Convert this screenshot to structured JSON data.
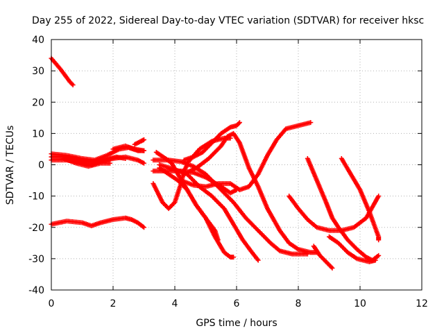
{
  "chart_data": {
    "type": "scatter",
    "title": "Day 255 of 2022, Sidereal Day-to-day VTEC variation (SDTVAR) for receiver hksc",
    "xlabel": "GPS time / hours",
    "ylabel": "SDTVAR / TECUs",
    "xlim": [
      0,
      12
    ],
    "ylim": [
      -40,
      40
    ],
    "x_ticks": [
      "0",
      "2",
      "4",
      "6",
      "8",
      "10",
      "12"
    ],
    "y_ticks": [
      "-40",
      "-30",
      "-20",
      "-10",
      "0",
      "10",
      "20",
      "30",
      "40"
    ],
    "grid": true,
    "marker": "plus",
    "color": "#ff0000",
    "series": [
      {
        "points": [
          [
            0.0,
            34
          ],
          [
            0.3,
            30.5
          ],
          [
            0.6,
            26.5
          ],
          [
            0.7,
            25.5
          ]
        ]
      },
      {
        "points": [
          [
            0.0,
            2.5
          ],
          [
            0.4,
            2.5
          ],
          [
            0.8,
            2.0
          ],
          [
            1.2,
            1.0
          ],
          [
            1.6,
            1.0
          ],
          [
            2.0,
            2.0
          ],
          [
            2.4,
            2.5
          ],
          [
            2.8,
            1.5
          ],
          [
            3.0,
            0.5
          ]
        ]
      },
      {
        "points": [
          [
            0.0,
            3.5
          ],
          [
            0.5,
            3.0
          ],
          [
            1.0,
            2.0
          ],
          [
            1.4,
            1.5
          ],
          [
            1.8,
            3.0
          ],
          [
            2.2,
            5.0
          ],
          [
            2.5,
            5.5
          ],
          [
            2.8,
            4.5
          ],
          [
            3.0,
            4.5
          ]
        ]
      },
      {
        "points": [
          [
            0.0,
            1.5
          ],
          [
            0.5,
            1.5
          ],
          [
            1.0,
            0.5
          ],
          [
            1.3,
            0.0
          ],
          [
            1.7,
            1.5
          ],
          [
            2.1,
            2.5
          ],
          [
            2.4,
            2.0
          ]
        ]
      },
      {
        "points": [
          [
            0.4,
            2.0
          ],
          [
            0.8,
            0.5
          ],
          [
            1.2,
            -0.5
          ],
          [
            1.6,
            0.5
          ],
          [
            1.9,
            0.5
          ]
        ]
      },
      {
        "points": [
          [
            2.0,
            5.0
          ],
          [
            2.4,
            6.0
          ],
          [
            2.7,
            5.0
          ],
          [
            3.0,
            4.5
          ]
        ]
      },
      {
        "points": [
          [
            2.7,
            6.5
          ],
          [
            2.9,
            7.5
          ],
          [
            3.0,
            8.0
          ]
        ]
      },
      {
        "points": [
          [
            0.0,
            -19
          ],
          [
            0.5,
            -18
          ],
          [
            1.0,
            -18.5
          ],
          [
            1.3,
            -19.5
          ],
          [
            1.6,
            -18.5
          ],
          [
            2.0,
            -17.5
          ],
          [
            2.4,
            -17
          ],
          [
            2.6,
            -17.5
          ],
          [
            2.8,
            -18.5
          ],
          [
            3.0,
            -20
          ]
        ]
      },
      {
        "points": [
          [
            3.3,
            -6
          ],
          [
            3.6,
            -12
          ],
          [
            3.8,
            -14
          ],
          [
            4.0,
            -12
          ],
          [
            4.2,
            -6
          ],
          [
            4.3,
            -2
          ],
          [
            4.4,
            0
          ]
        ]
      },
      {
        "points": [
          [
            3.3,
            -2
          ],
          [
            3.8,
            -2
          ],
          [
            4.2,
            -2
          ],
          [
            4.6,
            -2.5
          ],
          [
            5.0,
            -4
          ],
          [
            5.5,
            -7
          ],
          [
            5.8,
            -9
          ],
          [
            6.0,
            -8
          ]
        ]
      },
      {
        "points": [
          [
            3.3,
            1.5
          ],
          [
            3.8,
            1.5
          ],
          [
            4.2,
            1
          ],
          [
            4.6,
            -0.5
          ],
          [
            5.0,
            -3
          ],
          [
            5.5,
            -8
          ],
          [
            5.9,
            -12
          ],
          [
            6.3,
            -17
          ],
          [
            6.7,
            -21
          ],
          [
            7.1,
            -25
          ],
          [
            7.4,
            -27.5
          ],
          [
            7.8,
            -28.5
          ],
          [
            8.3,
            -28.5
          ]
        ]
      },
      {
        "points": [
          [
            3.4,
            4
          ],
          [
            3.7,
            2
          ],
          [
            3.9,
            0.5
          ],
          [
            4.1,
            -3
          ],
          [
            4.4,
            -8
          ],
          [
            4.7,
            -13
          ],
          [
            5.0,
            -17
          ],
          [
            5.3,
            -23
          ],
          [
            5.6,
            -28
          ],
          [
            5.8,
            -29.5
          ],
          [
            5.9,
            -29.5
          ]
        ]
      },
      {
        "points": [
          [
            3.5,
            -1
          ],
          [
            3.8,
            -3
          ],
          [
            4.1,
            -5
          ],
          [
            4.4,
            -8
          ],
          [
            4.7,
            -13
          ],
          [
            5.0,
            -17
          ],
          [
            5.3,
            -21
          ],
          [
            5.4,
            -24
          ]
        ]
      },
      {
        "points": [
          [
            3.5,
            0
          ],
          [
            4.0,
            -1.5
          ],
          [
            4.4,
            -3
          ],
          [
            4.8,
            -7
          ],
          [
            5.2,
            -10
          ],
          [
            5.6,
            -14
          ],
          [
            5.9,
            -19
          ],
          [
            6.2,
            -24
          ],
          [
            6.5,
            -28
          ],
          [
            6.7,
            -30.5
          ]
        ]
      },
      {
        "points": [
          [
            4.3,
            1.5
          ],
          [
            4.6,
            2.5
          ],
          [
            4.9,
            4
          ],
          [
            5.2,
            7
          ],
          [
            5.5,
            10
          ],
          [
            5.8,
            12
          ],
          [
            6.0,
            12.5
          ],
          [
            6.1,
            13.5
          ]
        ]
      },
      {
        "points": [
          [
            4.4,
            0.5
          ],
          [
            4.8,
            5
          ],
          [
            5.2,
            7.5
          ],
          [
            5.6,
            8.5
          ],
          [
            5.8,
            8.5
          ]
        ]
      },
      {
        "points": [
          [
            4.3,
            -3
          ],
          [
            4.7,
            -1
          ],
          [
            5.1,
            2
          ],
          [
            5.5,
            6
          ],
          [
            5.7,
            9
          ],
          [
            5.9,
            10
          ],
          [
            6.1,
            7
          ],
          [
            6.4,
            -1
          ],
          [
            6.7,
            -7
          ],
          [
            7.0,
            -14
          ],
          [
            7.4,
            -21
          ],
          [
            7.7,
            -25
          ],
          [
            8.0,
            -27
          ],
          [
            8.4,
            -28
          ],
          [
            8.6,
            -28
          ]
        ]
      },
      {
        "points": [
          [
            4.2,
            -5
          ],
          [
            4.6,
            -6.5
          ],
          [
            5.0,
            -7
          ],
          [
            5.4,
            -6
          ],
          [
            5.8,
            -6
          ],
          [
            6.1,
            -8
          ],
          [
            6.4,
            -7
          ],
          [
            6.7,
            -3
          ],
          [
            7.0,
            3
          ],
          [
            7.3,
            8
          ],
          [
            7.6,
            11.5
          ],
          [
            8.0,
            12.5
          ],
          [
            8.4,
            13.5
          ]
        ]
      },
      {
        "points": [
          [
            7.7,
            -10
          ],
          [
            8.0,
            -14
          ],
          [
            8.3,
            -17.5
          ],
          [
            8.6,
            -20
          ],
          [
            9.0,
            -21
          ],
          [
            9.4,
            -21
          ],
          [
            9.8,
            -20
          ],
          [
            10.2,
            -17
          ],
          [
            10.6,
            -10
          ]
        ]
      },
      {
        "points": [
          [
            8.3,
            2
          ],
          [
            8.6,
            -5
          ],
          [
            8.9,
            -12
          ],
          [
            9.1,
            -17
          ],
          [
            9.3,
            -20
          ],
          [
            9.6,
            -24
          ],
          [
            9.9,
            -27
          ],
          [
            10.2,
            -29.5
          ],
          [
            10.4,
            -30.5
          ],
          [
            10.6,
            -29
          ]
        ]
      },
      {
        "points": [
          [
            8.5,
            -26
          ],
          [
            8.7,
            -29
          ],
          [
            8.9,
            -31
          ],
          [
            9.1,
            -33
          ]
        ]
      },
      {
        "points": [
          [
            9.4,
            2
          ],
          [
            9.7,
            -3
          ],
          [
            10.0,
            -8
          ],
          [
            10.3,
            -15
          ],
          [
            10.6,
            -23
          ],
          [
            10.6,
            -24
          ]
        ]
      },
      {
        "points": [
          [
            9.0,
            -23
          ],
          [
            9.3,
            -25
          ],
          [
            9.6,
            -28
          ],
          [
            9.9,
            -30
          ],
          [
            10.3,
            -31
          ],
          [
            10.5,
            -30.5
          ]
        ]
      }
    ]
  }
}
